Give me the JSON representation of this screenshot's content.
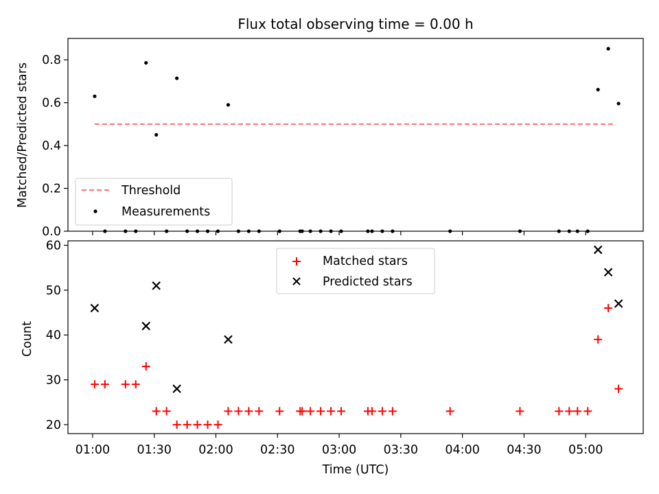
{
  "title": "Flux total observing time = 0.00 h",
  "colors": {
    "threshold": "#ff6f6f",
    "measurement": "#000000",
    "matched": "#ff0000",
    "predicted": "#000000",
    "frame": "#000000",
    "legend_border": "#cccccc"
  },
  "chart_data": [
    {
      "type": "scatter",
      "ylabel": "Matched/Predicted stars",
      "ylim": [
        0,
        0.9
      ],
      "y_ticks": [
        0.0,
        0.2,
        0.4,
        0.6,
        0.8
      ],
      "y_tick_labels": [
        "0.0",
        "0.2",
        "0.4",
        "0.6",
        "0.8"
      ],
      "x_ticks": [
        "01:00",
        "01:30",
        "02:00",
        "02:30",
        "03:00",
        "03:30",
        "04:00",
        "04:30",
        "05:00"
      ],
      "xlim": [
        "00:48",
        "05:28"
      ],
      "grid": false,
      "legend_position": "lower-left",
      "series": [
        {
          "name": "Threshold",
          "kind": "line",
          "style": "dashed",
          "x": [
            "01:01",
            "05:14"
          ],
          "y": [
            0.5,
            0.5
          ]
        },
        {
          "name": "Measurements",
          "kind": "points",
          "x": [
            "01:01",
            "01:06",
            "01:16",
            "01:21",
            "01:26",
            "01:31",
            "01:36",
            "01:41",
            "01:46",
            "01:51",
            "01:56",
            "02:01",
            "02:06",
            "02:11",
            "02:16",
            "02:21",
            "02:31",
            "02:41",
            "02:42",
            "02:46",
            "02:51",
            "02:56",
            "03:01",
            "03:14",
            "03:16",
            "03:21",
            "03:26",
            "03:54",
            "04:28",
            "04:47",
            "04:52",
            "04:56",
            "05:01",
            "05:06",
            "05:11",
            "05:16"
          ],
          "y": [
            0.63,
            0.0,
            0.0,
            0.0,
            0.786,
            0.45,
            0.0,
            0.714,
            0.0,
            0.0,
            0.0,
            0.0,
            0.59,
            0.0,
            0.0,
            0.0,
            0.0,
            0.0,
            0.0,
            0.0,
            0.0,
            0.0,
            0.0,
            0.0,
            0.0,
            0.0,
            0.0,
            0.0,
            0.0,
            0.0,
            0.0,
            0.0,
            0.0,
            0.661,
            0.852,
            0.596
          ]
        }
      ]
    },
    {
      "type": "scatter",
      "xlabel": "Time (UTC)",
      "ylabel": "Count",
      "ylim": [
        18,
        61
      ],
      "y_ticks": [
        20,
        30,
        40,
        50,
        60
      ],
      "y_tick_labels": [
        "20",
        "30",
        "40",
        "50",
        "60"
      ],
      "x_ticks": [
        "01:00",
        "01:30",
        "02:00",
        "02:30",
        "03:00",
        "03:30",
        "04:00",
        "04:30",
        "05:00"
      ],
      "x_tick_labels": [
        "01:00",
        "01:30",
        "02:00",
        "02:30",
        "03:00",
        "03:30",
        "04:00",
        "04:30",
        "05:00"
      ],
      "xlim": [
        "00:48",
        "05:28"
      ],
      "grid": false,
      "legend_position": "upper-center",
      "series": [
        {
          "name": "Matched stars",
          "marker": "+",
          "x": [
            "01:01",
            "01:06",
            "01:16",
            "01:21",
            "01:26",
            "01:31",
            "01:36",
            "01:41",
            "01:46",
            "01:51",
            "01:56",
            "02:01",
            "02:06",
            "02:11",
            "02:16",
            "02:21",
            "02:31",
            "02:41",
            "02:42",
            "02:46",
            "02:51",
            "02:56",
            "03:01",
            "03:14",
            "03:16",
            "03:21",
            "03:26",
            "03:54",
            "04:28",
            "04:47",
            "04:52",
            "04:56",
            "05:01",
            "05:06",
            "05:11",
            "05:16"
          ],
          "y": [
            29,
            29,
            29,
            29,
            33,
            23,
            23,
            20,
            20,
            20,
            20,
            20,
            23,
            23,
            23,
            23,
            23,
            23,
            23,
            23,
            23,
            23,
            23,
            23,
            23,
            23,
            23,
            23,
            23,
            23,
            23,
            23,
            23,
            39,
            46,
            28
          ]
        },
        {
          "name": "Predicted stars",
          "marker": "x",
          "x": [
            "01:01",
            "01:26",
            "01:31",
            "01:41",
            "02:06",
            "05:06",
            "05:11",
            "05:16"
          ],
          "y": [
            46,
            42,
            51,
            28,
            39,
            59,
            54,
            47
          ]
        }
      ]
    }
  ]
}
